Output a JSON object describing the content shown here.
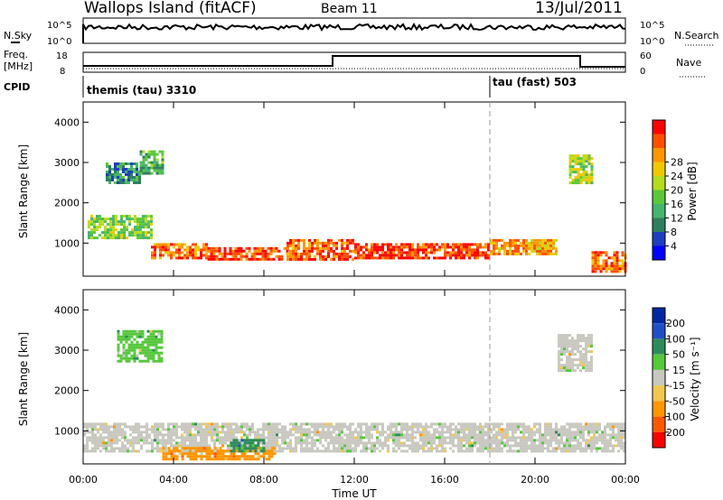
{
  "header": {
    "station": "Wallops Island (fitACF)",
    "beam": "Beam 11",
    "date": "13/Jul/2011"
  },
  "panels": {
    "nsky": {
      "label": "N.Sky",
      "ticks": [
        "10^5",
        "10^0"
      ],
      "right_label": "N.Search",
      "right_ticks": [
        "10^5",
        "10^0"
      ]
    },
    "freq": {
      "label_line1": "Freq.",
      "label_line2": "[MHz]",
      "ticks": [
        "18",
        "8"
      ],
      "right_label": "Nave",
      "right_ticks": [
        "60",
        "0"
      ]
    },
    "cpid": {
      "label": "CPID",
      "segments": [
        "themis (tau) 3310",
        "tau (fast) 503"
      ]
    }
  },
  "chart_data": [
    {
      "type": "heatmap",
      "title": "",
      "xlabel": "",
      "ylabel": "Slant Range [km]",
      "x_ticks": [
        "00:00",
        "04:00",
        "08:00",
        "12:00",
        "16:00",
        "20:00",
        "00:00"
      ],
      "xlim_hours": [
        0,
        24
      ],
      "ylim": [
        180,
        4500
      ],
      "y_ticks": [
        1000,
        2000,
        3000,
        4000
      ],
      "colorbar": {
        "label": "Power [dB]",
        "ticks": [
          4,
          8,
          12,
          16,
          20,
          24,
          28
        ],
        "range": [
          0,
          30
        ],
        "colors": [
          "#0000ff",
          "#1f3fbf",
          "#2f7f5f",
          "#46b46e",
          "#5ac83c",
          "#b4dc1e",
          "#f0c800",
          "#ff9600",
          "#ff5000",
          "#ff0000"
        ]
      },
      "regions": [
        {
          "t": [
            0.2,
            3.0
          ],
          "r": [
            1150,
            1700
          ],
          "value": 14
        },
        {
          "t": [
            1.0,
            2.5
          ],
          "r": [
            2500,
            3000
          ],
          "value": 8
        },
        {
          "t": [
            2.5,
            3.5
          ],
          "r": [
            2700,
            3300
          ],
          "value": 12
        },
        {
          "t": [
            3.0,
            5.5
          ],
          "r": [
            600,
            1000
          ],
          "value": 24
        },
        {
          "t": [
            5.5,
            9.0
          ],
          "r": [
            600,
            900
          ],
          "value": 26
        },
        {
          "t": [
            9.0,
            12.0
          ],
          "r": [
            600,
            1100
          ],
          "value": 25
        },
        {
          "t": [
            12.0,
            18.0
          ],
          "r": [
            650,
            1000
          ],
          "value": 27
        },
        {
          "t": [
            18.0,
            21.0
          ],
          "r": [
            700,
            1100
          ],
          "value": 22
        },
        {
          "t": [
            22.5,
            24.0
          ],
          "r": [
            300,
            800
          ],
          "value": 24
        },
        {
          "t": [
            21.5,
            22.5
          ],
          "r": [
            2500,
            3200
          ],
          "value": 16
        }
      ]
    },
    {
      "type": "heatmap",
      "title": "",
      "xlabel": "Time UT",
      "ylabel": "Slant Range [km]",
      "x_ticks": [
        "00:00",
        "04:00",
        "08:00",
        "12:00",
        "16:00",
        "20:00",
        "00:00"
      ],
      "xlim_hours": [
        0,
        24
      ],
      "ylim": [
        180,
        4500
      ],
      "y_ticks": [
        1000,
        2000,
        3000,
        4000
      ],
      "colorbar": {
        "label": "Velocity [m s⁻¹]",
        "ticks": [
          200,
          100,
          50,
          15,
          -15,
          -50,
          -100,
          -200
        ],
        "colors": [
          "#0028a0",
          "#1e50c8",
          "#2d8c5a",
          "#55c83c",
          "#c8c8c0",
          "#f0c850",
          "#ff9600",
          "#ff5a00",
          "#ff0000"
        ]
      },
      "regions": [
        {
          "t": [
            0.0,
            24.0
          ],
          "r": [
            500,
            1200
          ],
          "value": 0
        },
        {
          "t": [
            3.5,
            8.5
          ],
          "r": [
            300,
            600
          ],
          "value": -60
        },
        {
          "t": [
            6.5,
            8.0
          ],
          "r": [
            500,
            800
          ],
          "value": 60
        },
        {
          "t": [
            1.5,
            3.5
          ],
          "r": [
            2700,
            3500
          ],
          "value": 40
        },
        {
          "t": [
            21.0,
            22.5
          ],
          "r": [
            2500,
            3400
          ],
          "value": 0
        }
      ]
    }
  ]
}
